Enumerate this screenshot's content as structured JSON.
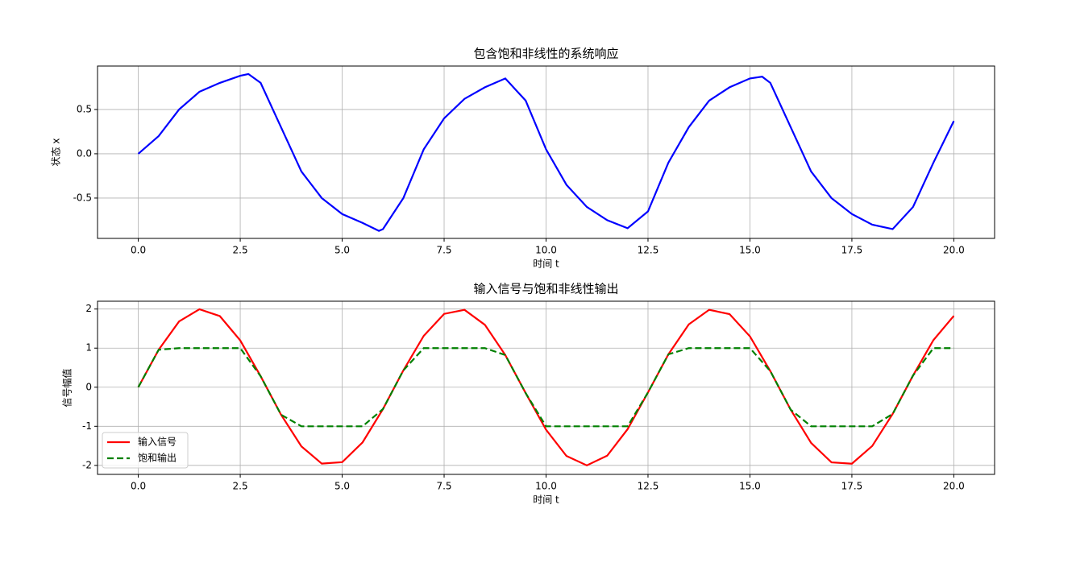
{
  "chart_data": [
    {
      "type": "line",
      "title": "包含饱和非线性的系统响应",
      "xlabel": "时间 t",
      "ylabel": "状态 x",
      "x": [
        0,
        0.5,
        1,
        1.5,
        2,
        2.5,
        2.7,
        3,
        3.5,
        4,
        4.5,
        5,
        5.5,
        5.9,
        6,
        6.5,
        7,
        7.5,
        8,
        8.5,
        9,
        9.5,
        10,
        10.5,
        11,
        11.5,
        12,
        12.5,
        13,
        13.5,
        14,
        14.5,
        15,
        15.3,
        15.5,
        16,
        16.5,
        17,
        17.5,
        18,
        18.5,
        19,
        19.5,
        20
      ],
      "series": [
        {
          "name": "状态",
          "color": "#0000ff",
          "dash": "solid",
          "values": [
            0,
            0.2,
            0.5,
            0.7,
            0.8,
            0.88,
            0.9,
            0.8,
            0.3,
            -0.2,
            -0.5,
            -0.68,
            -0.78,
            -0.87,
            -0.85,
            -0.5,
            0.05,
            0.4,
            0.62,
            0.75,
            0.85,
            0.6,
            0.05,
            -0.35,
            -0.6,
            -0.75,
            -0.84,
            -0.65,
            -0.1,
            0.3,
            0.6,
            0.75,
            0.85,
            0.87,
            0.8,
            0.3,
            -0.2,
            -0.5,
            -0.68,
            -0.8,
            -0.85,
            -0.6,
            -0.1,
            0.37
          ]
        }
      ],
      "xlim": [
        -1,
        21
      ],
      "ylim": [
        -0.955,
        0.99
      ],
      "xticks": [
        {
          "value": 0,
          "label": "0.0"
        },
        2.5,
        {
          "value": 5,
          "label": "5.0"
        },
        7.5,
        {
          "value": 10,
          "label": "10.0"
        },
        12.5,
        {
          "value": 15,
          "label": "15.0"
        },
        17.5,
        {
          "value": 20,
          "label": "20.0"
        }
      ],
      "yticks": [
        -0.5,
        {
          "value": 0,
          "label": "0.0"
        },
        0.5
      ],
      "grid": true,
      "legend": false
    },
    {
      "type": "line",
      "title": "输入信号与饱和非线性输出",
      "xlabel": "时间 t",
      "ylabel": "信号幅值",
      "x": [
        0,
        0.5,
        1,
        1.5,
        2,
        2.5,
        3,
        3.5,
        4,
        4.5,
        5,
        5.5,
        6,
        6.5,
        7,
        7.5,
        8,
        8.5,
        9,
        9.5,
        10,
        10.5,
        11,
        11.5,
        12,
        12.5,
        13,
        13.5,
        14,
        14.5,
        15,
        15.5,
        16,
        16.5,
        17,
        17.5,
        18,
        18.5,
        19,
        19.5,
        20
      ],
      "series": [
        {
          "name": "输入信号",
          "color": "#ff0000",
          "dash": "solid",
          "values": [
            0,
            0.959,
            1.683,
            1.995,
            1.819,
            1.197,
            0.282,
            -0.702,
            -1.514,
            -1.955,
            -1.918,
            -1.411,
            -0.559,
            0.43,
            1.314,
            1.876,
            1.979,
            1.596,
            0.824,
            -0.15,
            -1.088,
            -1.759,
            -2,
            -1.751,
            -1.073,
            -0.133,
            0.841,
            1.607,
            1.981,
            1.869,
            1.301,
            0.412,
            -0.576,
            -1.425,
            -1.923,
            -1.956,
            -1.502,
            -0.684,
            0.3,
            1.206,
            1.826
          ]
        },
        {
          "name": "饱和输出",
          "color": "#008000",
          "dash": "dashed",
          "values": [
            0,
            0.959,
            1,
            1,
            1,
            1,
            0.282,
            -0.702,
            -1,
            -1,
            -1,
            -1,
            -0.559,
            0.43,
            1,
            1,
            1,
            1,
            0.824,
            -0.15,
            -1,
            -1,
            -1,
            -1,
            -1,
            -0.133,
            0.841,
            1,
            1,
            1,
            1,
            0.412,
            -0.576,
            -1,
            -1,
            -1,
            -1,
            -0.684,
            0.3,
            1,
            1
          ]
        }
      ],
      "xlim": [
        -1,
        21
      ],
      "ylim": [
        -2.23,
        2.2
      ],
      "xticks": [
        {
          "value": 0,
          "label": "0.0"
        },
        2.5,
        {
          "value": 5,
          "label": "5.0"
        },
        7.5,
        {
          "value": 10,
          "label": "10.0"
        },
        12.5,
        {
          "value": 15,
          "label": "15.0"
        },
        17.5,
        {
          "value": 20,
          "label": "20.0"
        }
      ],
      "yticks": [
        -2,
        -1,
        0,
        1,
        2
      ],
      "grid": true,
      "legend": "lower left"
    }
  ]
}
